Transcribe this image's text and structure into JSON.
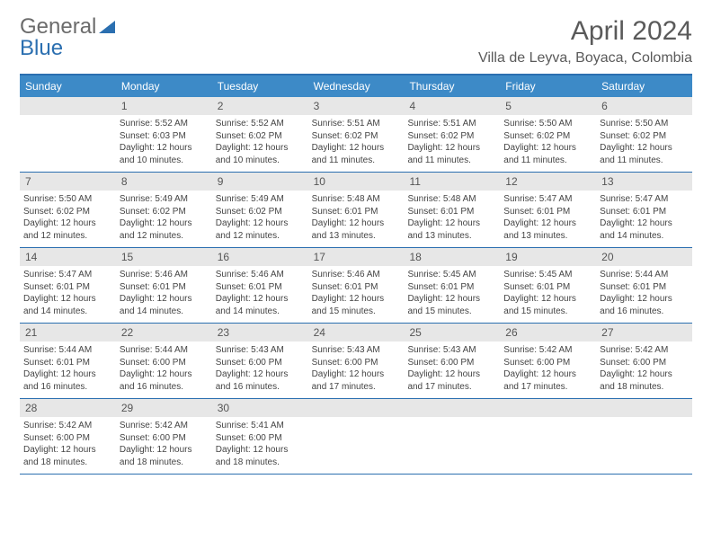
{
  "logo": {
    "text1": "General",
    "text2": "Blue"
  },
  "title": "April 2024",
  "location": "Villa de Leyva, Boyaca, Colombia",
  "colors": {
    "header_bg": "#3d8ac7",
    "border": "#2b6fb0",
    "daynum_bg": "#e7e7e7",
    "text": "#444444",
    "title_text": "#5a5a5a"
  },
  "weekdays": [
    "Sunday",
    "Monday",
    "Tuesday",
    "Wednesday",
    "Thursday",
    "Friday",
    "Saturday"
  ],
  "weeks": [
    [
      {
        "n": "",
        "sr": "",
        "ss": "",
        "dl": ""
      },
      {
        "n": "1",
        "sr": "5:52 AM",
        "ss": "6:03 PM",
        "dl": "12 hours and 10 minutes."
      },
      {
        "n": "2",
        "sr": "5:52 AM",
        "ss": "6:02 PM",
        "dl": "12 hours and 10 minutes."
      },
      {
        "n": "3",
        "sr": "5:51 AM",
        "ss": "6:02 PM",
        "dl": "12 hours and 11 minutes."
      },
      {
        "n": "4",
        "sr": "5:51 AM",
        "ss": "6:02 PM",
        "dl": "12 hours and 11 minutes."
      },
      {
        "n": "5",
        "sr": "5:50 AM",
        "ss": "6:02 PM",
        "dl": "12 hours and 11 minutes."
      },
      {
        "n": "6",
        "sr": "5:50 AM",
        "ss": "6:02 PM",
        "dl": "12 hours and 11 minutes."
      }
    ],
    [
      {
        "n": "7",
        "sr": "5:50 AM",
        "ss": "6:02 PM",
        "dl": "12 hours and 12 minutes."
      },
      {
        "n": "8",
        "sr": "5:49 AM",
        "ss": "6:02 PM",
        "dl": "12 hours and 12 minutes."
      },
      {
        "n": "9",
        "sr": "5:49 AM",
        "ss": "6:02 PM",
        "dl": "12 hours and 12 minutes."
      },
      {
        "n": "10",
        "sr": "5:48 AM",
        "ss": "6:01 PM",
        "dl": "12 hours and 13 minutes."
      },
      {
        "n": "11",
        "sr": "5:48 AM",
        "ss": "6:01 PM",
        "dl": "12 hours and 13 minutes."
      },
      {
        "n": "12",
        "sr": "5:47 AM",
        "ss": "6:01 PM",
        "dl": "12 hours and 13 minutes."
      },
      {
        "n": "13",
        "sr": "5:47 AM",
        "ss": "6:01 PM",
        "dl": "12 hours and 14 minutes."
      }
    ],
    [
      {
        "n": "14",
        "sr": "5:47 AM",
        "ss": "6:01 PM",
        "dl": "12 hours and 14 minutes."
      },
      {
        "n": "15",
        "sr": "5:46 AM",
        "ss": "6:01 PM",
        "dl": "12 hours and 14 minutes."
      },
      {
        "n": "16",
        "sr": "5:46 AM",
        "ss": "6:01 PM",
        "dl": "12 hours and 14 minutes."
      },
      {
        "n": "17",
        "sr": "5:46 AM",
        "ss": "6:01 PM",
        "dl": "12 hours and 15 minutes."
      },
      {
        "n": "18",
        "sr": "5:45 AM",
        "ss": "6:01 PM",
        "dl": "12 hours and 15 minutes."
      },
      {
        "n": "19",
        "sr": "5:45 AM",
        "ss": "6:01 PM",
        "dl": "12 hours and 15 minutes."
      },
      {
        "n": "20",
        "sr": "5:44 AM",
        "ss": "6:01 PM",
        "dl": "12 hours and 16 minutes."
      }
    ],
    [
      {
        "n": "21",
        "sr": "5:44 AM",
        "ss": "6:01 PM",
        "dl": "12 hours and 16 minutes."
      },
      {
        "n": "22",
        "sr": "5:44 AM",
        "ss": "6:00 PM",
        "dl": "12 hours and 16 minutes."
      },
      {
        "n": "23",
        "sr": "5:43 AM",
        "ss": "6:00 PM",
        "dl": "12 hours and 16 minutes."
      },
      {
        "n": "24",
        "sr": "5:43 AM",
        "ss": "6:00 PM",
        "dl": "12 hours and 17 minutes."
      },
      {
        "n": "25",
        "sr": "5:43 AM",
        "ss": "6:00 PM",
        "dl": "12 hours and 17 minutes."
      },
      {
        "n": "26",
        "sr": "5:42 AM",
        "ss": "6:00 PM",
        "dl": "12 hours and 17 minutes."
      },
      {
        "n": "27",
        "sr": "5:42 AM",
        "ss": "6:00 PM",
        "dl": "12 hours and 18 minutes."
      }
    ],
    [
      {
        "n": "28",
        "sr": "5:42 AM",
        "ss": "6:00 PM",
        "dl": "12 hours and 18 minutes."
      },
      {
        "n": "29",
        "sr": "5:42 AM",
        "ss": "6:00 PM",
        "dl": "12 hours and 18 minutes."
      },
      {
        "n": "30",
        "sr": "5:41 AM",
        "ss": "6:00 PM",
        "dl": "12 hours and 18 minutes."
      },
      {
        "n": "",
        "sr": "",
        "ss": "",
        "dl": ""
      },
      {
        "n": "",
        "sr": "",
        "ss": "",
        "dl": ""
      },
      {
        "n": "",
        "sr": "",
        "ss": "",
        "dl": ""
      },
      {
        "n": "",
        "sr": "",
        "ss": "",
        "dl": ""
      }
    ]
  ],
  "labels": {
    "sunrise": "Sunrise:",
    "sunset": "Sunset:",
    "daylight": "Daylight:"
  }
}
